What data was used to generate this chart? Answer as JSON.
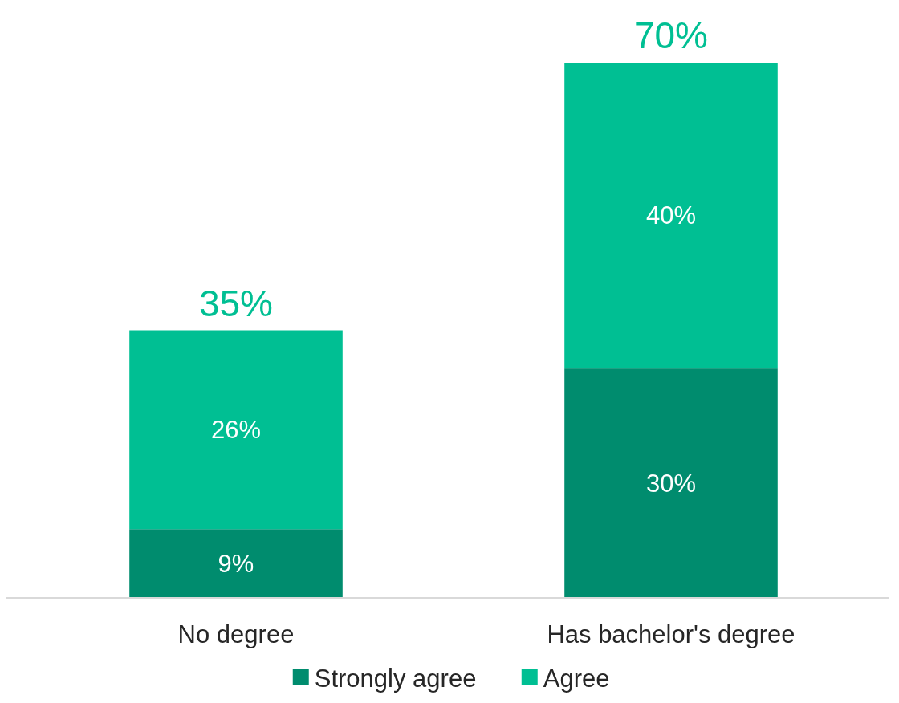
{
  "chart_data": {
    "type": "bar",
    "stacked": true,
    "categories": [
      "No degree",
      "Has bachelor's degree"
    ],
    "series": [
      {
        "name": "Strongly agree",
        "color": "#008c6e",
        "values": [
          9,
          30
        ],
        "value_labels": [
          "9%",
          "30%"
        ]
      },
      {
        "name": "Agree",
        "color": "#00bf93",
        "values": [
          26,
          40
        ],
        "value_labels": [
          "26%",
          "40%"
        ]
      }
    ],
    "totals": [
      "35%",
      "70%"
    ],
    "legend": "bottom"
  }
}
